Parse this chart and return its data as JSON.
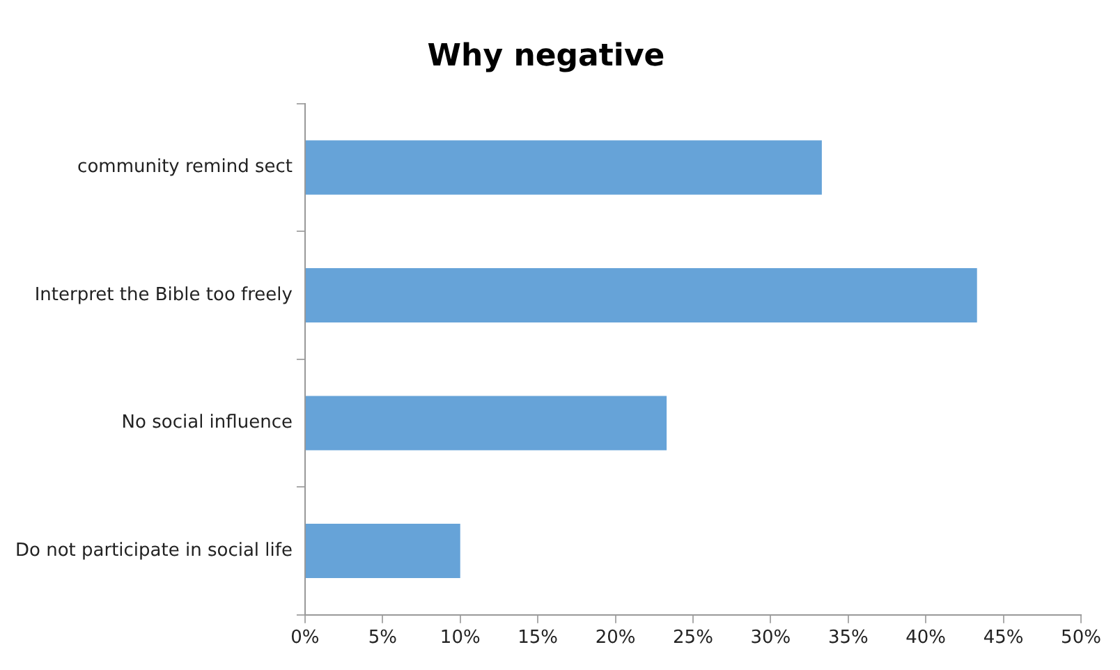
{
  "chart_data": {
    "type": "bar",
    "orientation": "horizontal",
    "title": "Why negative",
    "categories": [
      "community remind sect",
      "Interpret the Bible too freely",
      "No social influence",
      "Do not participate in social life"
    ],
    "values": [
      33.3,
      43.3,
      23.3,
      10
    ],
    "color": "#66a3d8",
    "xlim": [
      0,
      50
    ],
    "xticks": [
      {
        "value": 0,
        "label": "0%"
      },
      {
        "value": 5,
        "label": "5%"
      },
      {
        "value": 10,
        "label": "10%"
      },
      {
        "value": 15,
        "label": "15%"
      },
      {
        "value": 20,
        "label": "20%"
      },
      {
        "value": 25,
        "label": "25%"
      },
      {
        "value": 30,
        "label": "30%"
      },
      {
        "value": 35,
        "label": "35%"
      },
      {
        "value": 40,
        "label": "40%"
      },
      {
        "value": 45,
        "label": "45%"
      },
      {
        "value": 50,
        "label": "50%"
      }
    ],
    "grid": false,
    "legend": false
  }
}
